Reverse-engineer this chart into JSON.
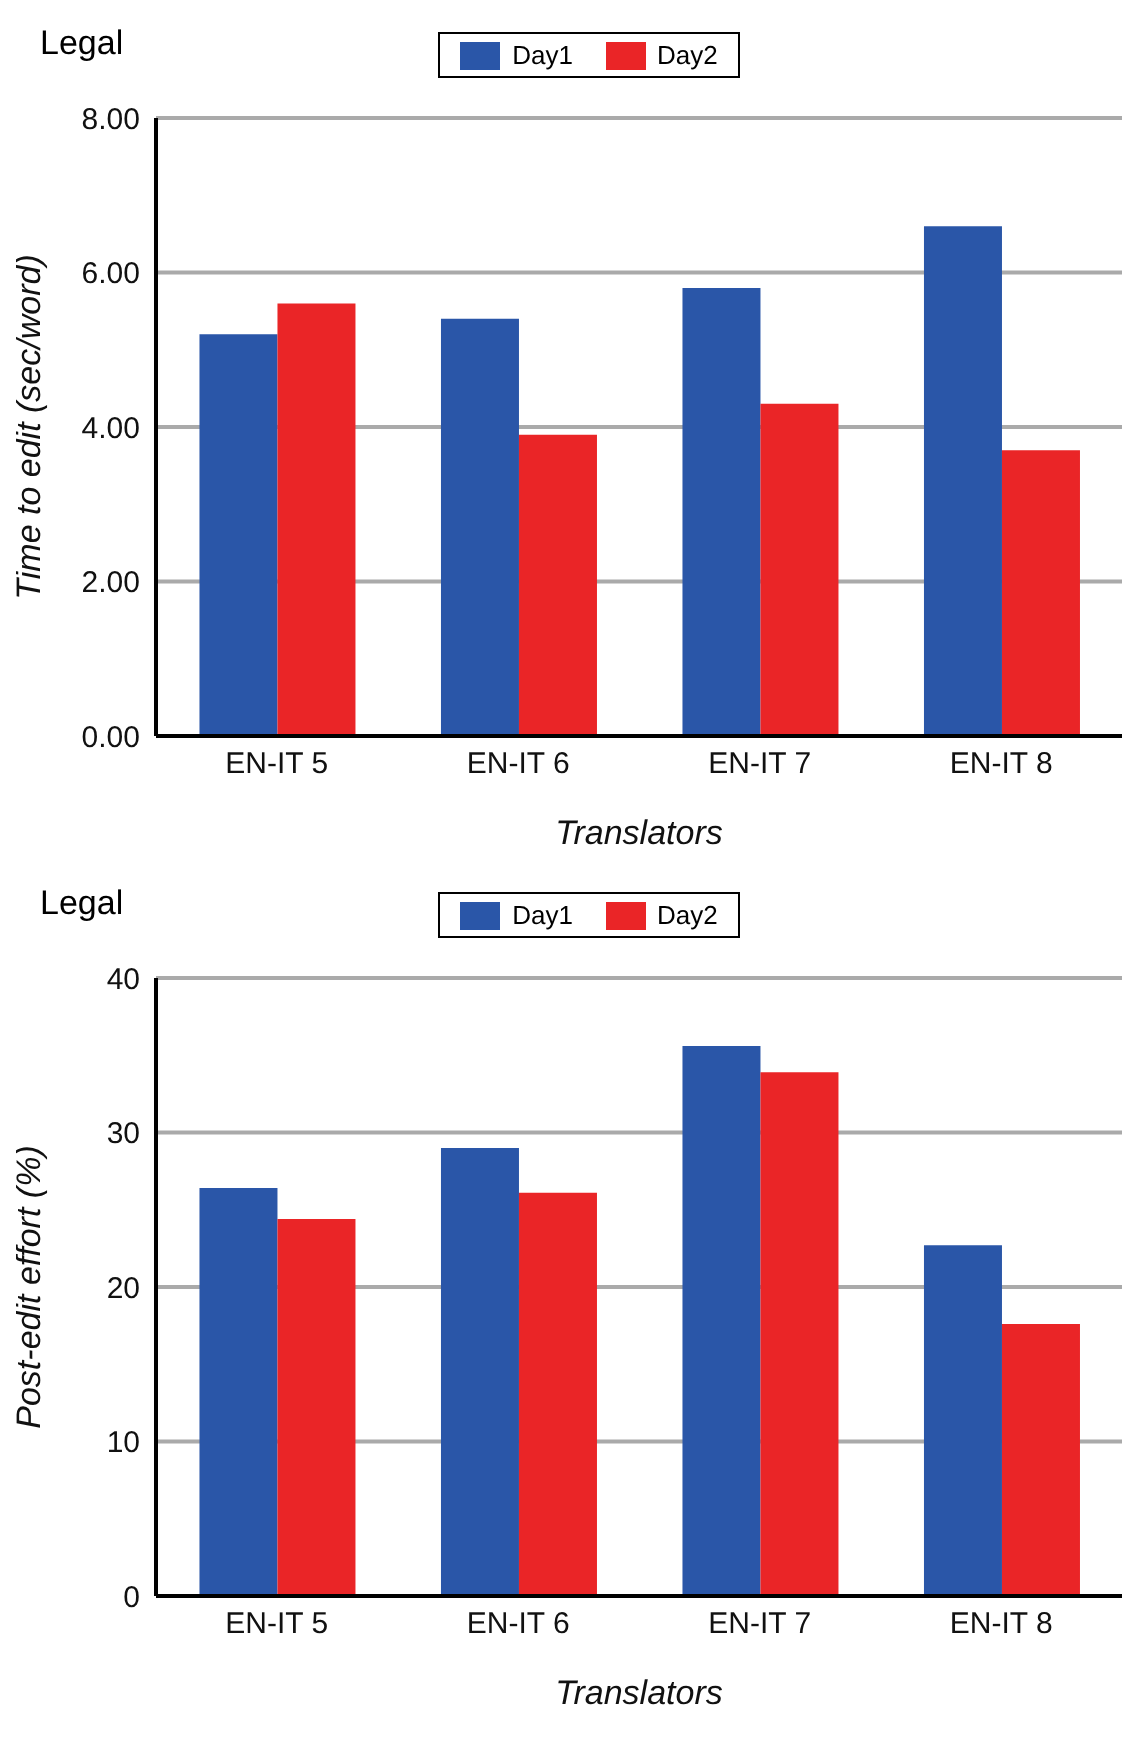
{
  "chart_data": [
    {
      "type": "bar",
      "title": "Legal",
      "xlabel": "Translators",
      "ylabel": "Time to edit (sec/word)",
      "categories": [
        "EN-IT 5",
        "EN-IT 6",
        "EN-IT 7",
        "EN-IT 8"
      ],
      "series": [
        {
          "name": "Day1",
          "color": "#2a56a8",
          "values": [
            5.2,
            5.4,
            5.8,
            6.6
          ]
        },
        {
          "name": "Day2",
          "color": "#ea2527",
          "values": [
            5.6,
            3.9,
            4.3,
            3.7
          ]
        }
      ],
      "ylim": [
        0,
        8
      ],
      "yticks": [
        {
          "value": 0,
          "label": "0.00"
        },
        {
          "value": 2,
          "label": "2.00"
        },
        {
          "value": 4,
          "label": "4.00"
        },
        {
          "value": 6,
          "label": "6.00"
        },
        {
          "value": 8,
          "label": "8.00"
        }
      ],
      "grid": "y",
      "legend": "top"
    },
    {
      "type": "bar",
      "title": "Legal",
      "xlabel": "Translators",
      "ylabel": "Post-edit effort (%)",
      "categories": [
        "EN-IT 5",
        "EN-IT 6",
        "EN-IT 7",
        "EN-IT 8"
      ],
      "series": [
        {
          "name": "Day1",
          "color": "#2a56a8",
          "values": [
            26.4,
            29.0,
            35.6,
            22.7
          ]
        },
        {
          "name": "Day2",
          "color": "#ea2527",
          "values": [
            24.4,
            26.1,
            33.9,
            17.6
          ]
        }
      ],
      "ylim": [
        0,
        40
      ],
      "yticks": [
        0,
        10,
        20,
        30,
        40
      ],
      "grid": "y",
      "legend": "top"
    }
  ]
}
